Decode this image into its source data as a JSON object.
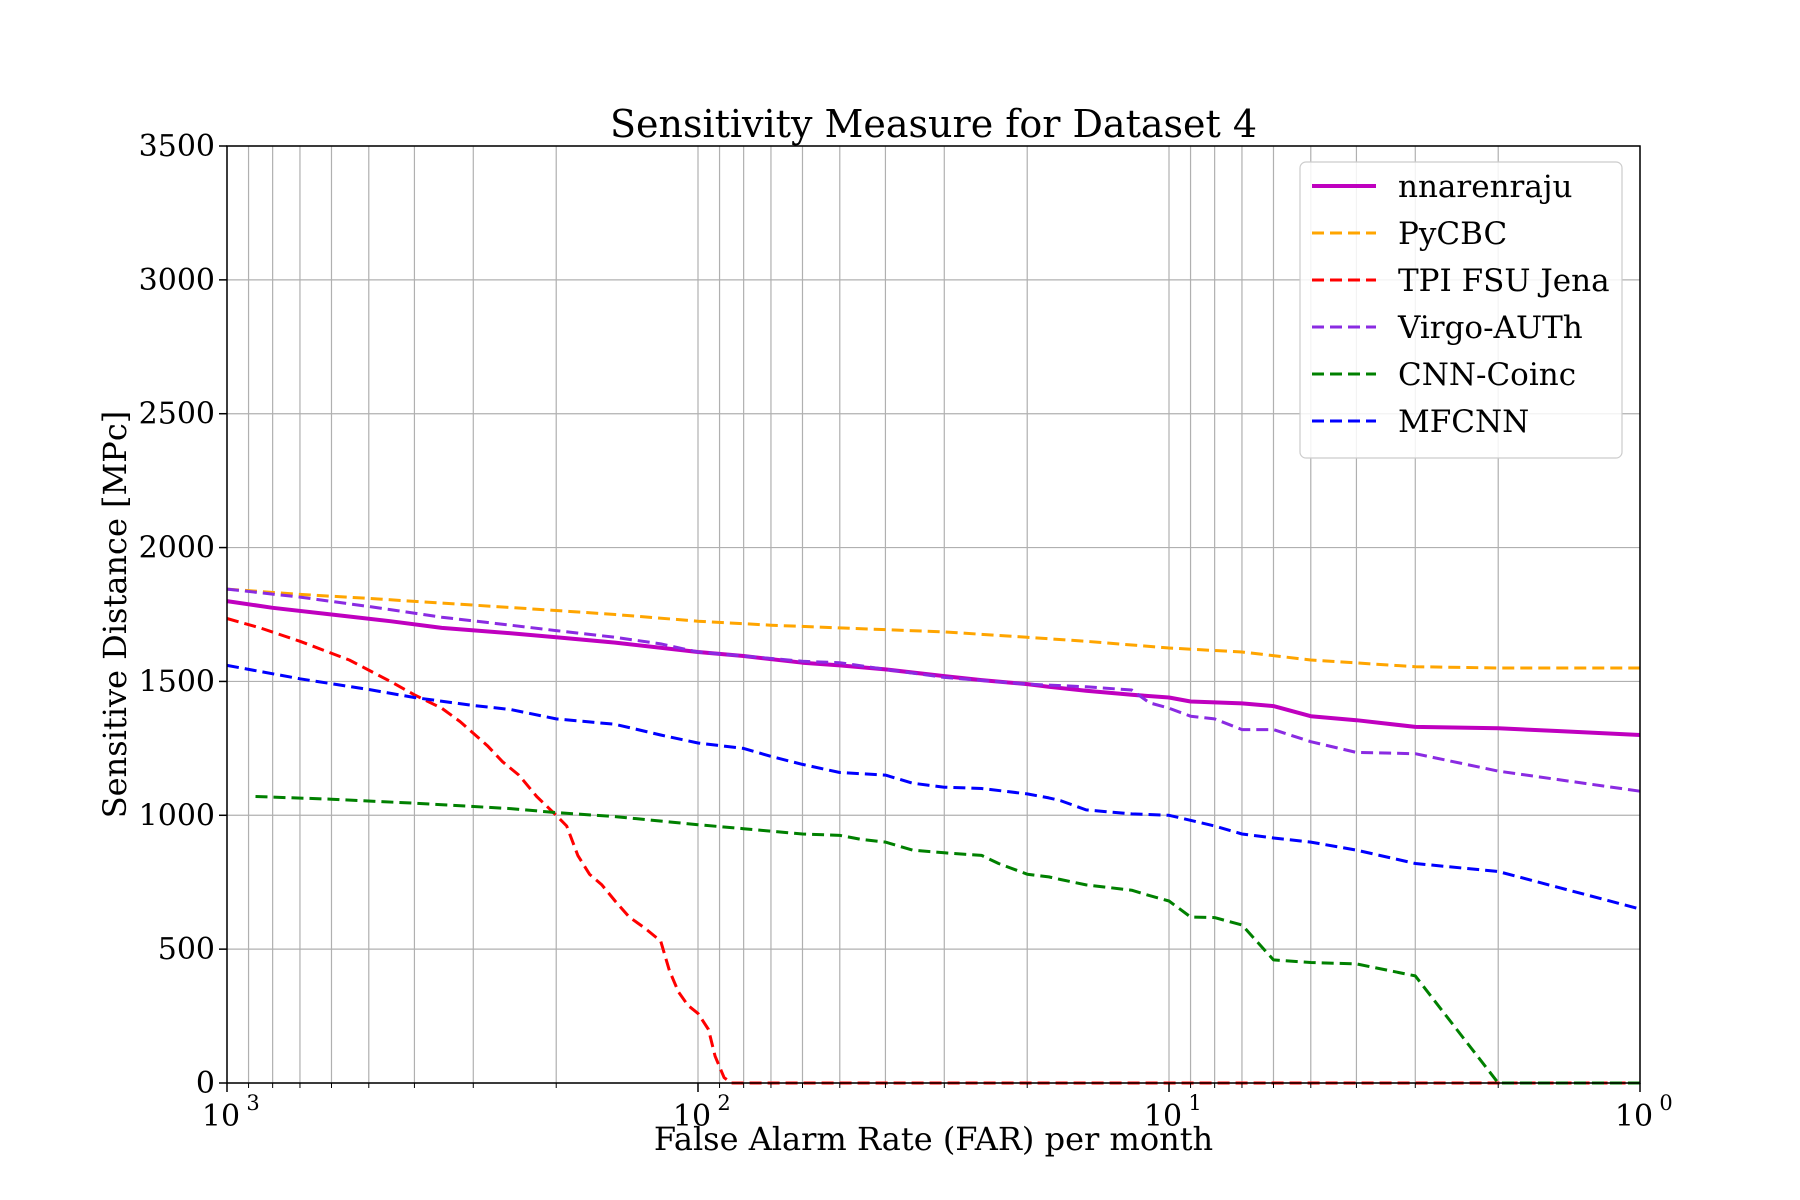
{
  "chart_data": {
    "type": "line",
    "title": "Sensitivity Measure for Dataset 4",
    "xlabel": "False Alarm Rate (FAR) per month",
    "ylabel": "Sensitive Distance [MPc]",
    "x_scale": "log",
    "x_reversed": true,
    "xlim": [
      1000,
      1
    ],
    "ylim": [
      0,
      3500
    ],
    "grid": true,
    "legend_position": "top-right",
    "y_ticks": [
      "0",
      "500",
      "1000",
      "1500",
      "2000",
      "2500",
      "3000",
      "3500"
    ],
    "x_ticks": [
      {
        "base": "10",
        "exp": "3"
      },
      {
        "base": "10",
        "exp": "2"
      },
      {
        "base": "10",
        "exp": "1"
      },
      {
        "base": "10",
        "exp": "0"
      }
    ],
    "series": [
      {
        "name": "nnarenraju",
        "color": "#bf00bf",
        "style": "solid",
        "points": [
          [
            1000,
            1800
          ],
          [
            800,
            1775
          ],
          [
            600,
            1750
          ],
          [
            450,
            1725
          ],
          [
            350,
            1700
          ],
          [
            250,
            1680
          ],
          [
            200,
            1665
          ],
          [
            150,
            1645
          ],
          [
            100,
            1610
          ],
          [
            80,
            1595
          ],
          [
            60,
            1570
          ],
          [
            50,
            1560
          ],
          [
            40,
            1545
          ],
          [
            30,
            1520
          ],
          [
            25,
            1505
          ],
          [
            20,
            1490
          ],
          [
            18,
            1480
          ],
          [
            15,
            1465
          ],
          [
            12,
            1450
          ],
          [
            10,
            1440
          ],
          [
            9,
            1425
          ],
          [
            7,
            1418
          ],
          [
            6,
            1408
          ],
          [
            5,
            1370
          ],
          [
            4,
            1355
          ],
          [
            3,
            1330
          ],
          [
            2,
            1325
          ],
          [
            1.5,
            1315
          ],
          [
            1,
            1300
          ]
        ]
      },
      {
        "name": "PyCBC",
        "color": "#ffa500",
        "style": "dashed",
        "points": [
          [
            1000,
            1845
          ],
          [
            700,
            1825
          ],
          [
            500,
            1810
          ],
          [
            300,
            1785
          ],
          [
            200,
            1765
          ],
          [
            150,
            1750
          ],
          [
            100,
            1725
          ],
          [
            70,
            1710
          ],
          [
            50,
            1700
          ],
          [
            30,
            1685
          ],
          [
            20,
            1665
          ],
          [
            15,
            1650
          ],
          [
            10,
            1625
          ],
          [
            7,
            1610
          ],
          [
            5,
            1580
          ],
          [
            3,
            1555
          ],
          [
            2,
            1550
          ],
          [
            1,
            1550
          ]
        ]
      },
      {
        "name": "TPI FSU Jena",
        "color": "#ff0000",
        "style": "dashed",
        "points": [
          [
            1000,
            1735
          ],
          [
            850,
            1700
          ],
          [
            700,
            1650
          ],
          [
            550,
            1580
          ],
          [
            450,
            1500
          ],
          [
            400,
            1450
          ],
          [
            350,
            1400
          ],
          [
            320,
            1350
          ],
          [
            280,
            1260
          ],
          [
            260,
            1200
          ],
          [
            240,
            1150
          ],
          [
            220,
            1070
          ],
          [
            200,
            1000
          ],
          [
            190,
            960
          ],
          [
            180,
            850
          ],
          [
            170,
            780
          ],
          [
            160,
            740
          ],
          [
            150,
            680
          ],
          [
            140,
            620
          ],
          [
            130,
            580
          ],
          [
            120,
            530
          ],
          [
            115,
            420
          ],
          [
            110,
            340
          ],
          [
            105,
            290
          ],
          [
            100,
            260
          ],
          [
            95,
            200
          ],
          [
            92,
            100
          ],
          [
            88,
            20
          ],
          [
            85,
            0
          ],
          [
            1,
            0
          ]
        ]
      },
      {
        "name": "Virgo-AUTh",
        "color": "#8a2be2",
        "style": "dashed",
        "points": [
          [
            1000,
            1845
          ],
          [
            700,
            1815
          ],
          [
            500,
            1780
          ],
          [
            350,
            1740
          ],
          [
            250,
            1710
          ],
          [
            200,
            1690
          ],
          [
            150,
            1665
          ],
          [
            120,
            1640
          ],
          [
            100,
            1610
          ],
          [
            80,
            1595
          ],
          [
            60,
            1575
          ],
          [
            50,
            1570
          ],
          [
            40,
            1545
          ],
          [
            30,
            1515
          ],
          [
            20,
            1490
          ],
          [
            15,
            1480
          ],
          [
            12,
            1468
          ],
          [
            11,
            1420
          ],
          [
            10,
            1400
          ],
          [
            9,
            1370
          ],
          [
            8,
            1360
          ],
          [
            7,
            1320
          ],
          [
            6,
            1320
          ],
          [
            5,
            1275
          ],
          [
            4,
            1235
          ],
          [
            3,
            1230
          ],
          [
            2,
            1165
          ],
          [
            1,
            1090
          ]
        ]
      },
      {
        "name": "CNN-Coinc",
        "color": "#008000",
        "style": "dashed",
        "points": [
          [
            870,
            1070
          ],
          [
            600,
            1060
          ],
          [
            400,
            1045
          ],
          [
            250,
            1025
          ],
          [
            200,
            1010
          ],
          [
            150,
            995
          ],
          [
            100,
            965
          ],
          [
            80,
            950
          ],
          [
            60,
            930
          ],
          [
            50,
            925
          ],
          [
            45,
            910
          ],
          [
            40,
            900
          ],
          [
            35,
            870
          ],
          [
            30,
            860
          ],
          [
            25,
            850
          ],
          [
            23,
            820
          ],
          [
            20,
            780
          ],
          [
            18,
            770
          ],
          [
            17,
            760
          ],
          [
            15,
            740
          ],
          [
            12,
            720
          ],
          [
            11,
            700
          ],
          [
            10,
            680
          ],
          [
            9,
            620
          ],
          [
            8,
            618
          ],
          [
            7,
            590
          ],
          [
            6,
            460
          ],
          [
            5,
            450
          ],
          [
            4,
            445
          ],
          [
            3,
            400
          ],
          [
            2,
            0
          ],
          [
            1,
            0
          ]
        ]
      },
      {
        "name": "MFCNN",
        "color": "#0000ff",
        "style": "dashed",
        "points": [
          [
            1000,
            1560
          ],
          [
            700,
            1510
          ],
          [
            500,
            1470
          ],
          [
            400,
            1440
          ],
          [
            300,
            1410
          ],
          [
            250,
            1395
          ],
          [
            200,
            1360
          ],
          [
            150,
            1340
          ],
          [
            120,
            1300
          ],
          [
            100,
            1270
          ],
          [
            80,
            1250
          ],
          [
            70,
            1220
          ],
          [
            60,
            1190
          ],
          [
            50,
            1160
          ],
          [
            40,
            1150
          ],
          [
            35,
            1120
          ],
          [
            30,
            1105
          ],
          [
            25,
            1100
          ],
          [
            20,
            1080
          ],
          [
            18,
            1065
          ],
          [
            17,
            1055
          ],
          [
            15,
            1020
          ],
          [
            12,
            1005
          ],
          [
            10,
            1000
          ],
          [
            8,
            960
          ],
          [
            7,
            930
          ],
          [
            6,
            915
          ],
          [
            5,
            900
          ],
          [
            4,
            870
          ],
          [
            3,
            820
          ],
          [
            2,
            790
          ],
          [
            1,
            650
          ]
        ]
      }
    ]
  }
}
